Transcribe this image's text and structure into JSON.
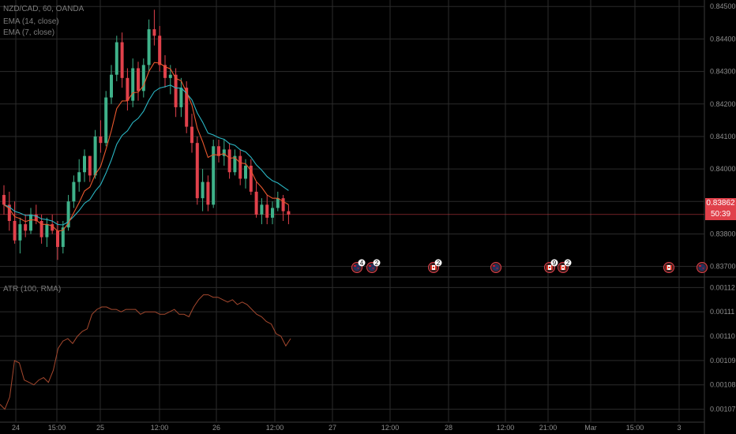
{
  "symbol": {
    "title": "NZD/CAD, 60, OANDA",
    "ema14": "EMA (14, close)",
    "ema7": "EMA (7, close)"
  },
  "atr_label": "ATR (100, RMA)",
  "price_tag": {
    "value": "0.83862",
    "countdown": "50:39"
  },
  "colors": {
    "up": "#3fb28a",
    "down": "#e0414b",
    "ema14": "#2ab7c5",
    "ema7": "#e9572d",
    "atr": "#a5482e",
    "grid": "#2b2b2b"
  },
  "events": [
    {
      "icon": "nz-flag-icon",
      "badge": "4"
    },
    {
      "icon": "nz-flag-icon",
      "badge": "2"
    },
    {
      "icon": "ca-flag-icon",
      "badge": "2"
    },
    {
      "icon": "nz-flag-icon",
      "badge": ""
    },
    {
      "icon": "ca-flag-icon",
      "badge": "9"
    },
    {
      "icon": "ca-flag-icon",
      "badge": "2"
    },
    {
      "icon": "ca-flag-icon",
      "badge": ""
    },
    {
      "icon": "nz-flag-icon",
      "badge": ""
    }
  ],
  "chart_data": [
    {
      "type": "candlestick",
      "title": "NZD/CAD, 60, OANDA",
      "y_ticks": [
        "0.84500",
        "0.84400",
        "0.84300",
        "0.84200",
        "0.84100",
        "0.84000",
        "0.83900",
        "0.83800",
        "0.83700"
      ],
      "ylim": [
        0.8367,
        0.8452
      ],
      "x_ticks": [
        "24",
        "15:00",
        "25",
        "12:00",
        "26",
        "12:00",
        "27",
        "12:00",
        "28",
        "12:00",
        "21:00",
        "Mar",
        "15:00",
        "3"
      ],
      "series": [
        {
          "name": "EMA (14, close)"
        },
        {
          "name": "EMA (7, close)"
        }
      ],
      "candles": [
        [
          0.8392,
          0.8395,
          0.8386,
          0.8389
        ],
        [
          0.8389,
          0.8393,
          0.8381,
          0.8384
        ],
        [
          0.8384,
          0.839,
          0.8377,
          0.8378
        ],
        [
          0.8378,
          0.8385,
          0.8374,
          0.8383
        ],
        [
          0.8383,
          0.8386,
          0.8379,
          0.8381
        ],
        [
          0.8381,
          0.8388,
          0.838,
          0.8386
        ],
        [
          0.8386,
          0.8389,
          0.8383,
          0.8384
        ],
        [
          0.8384,
          0.8386,
          0.8377,
          0.8379
        ],
        [
          0.8379,
          0.8385,
          0.8376,
          0.8383
        ],
        [
          0.8383,
          0.8386,
          0.838,
          0.8381
        ],
        [
          0.8381,
          0.8384,
          0.8372,
          0.8376
        ],
        [
          0.8376,
          0.8384,
          0.8374,
          0.8382
        ],
        [
          0.8382,
          0.8392,
          0.8381,
          0.839
        ],
        [
          0.839,
          0.8398,
          0.8388,
          0.8396
        ],
        [
          0.8396,
          0.8403,
          0.8393,
          0.8399
        ],
        [
          0.8399,
          0.8406,
          0.8396,
          0.8404
        ],
        [
          0.8404,
          0.8404,
          0.8396,
          0.8398
        ],
        [
          0.8398,
          0.8412,
          0.8397,
          0.841
        ],
        [
          0.841,
          0.8415,
          0.8405,
          0.8408
        ],
        [
          0.8408,
          0.8424,
          0.8407,
          0.8422
        ],
        [
          0.8422,
          0.8432,
          0.842,
          0.8429
        ],
        [
          0.8429,
          0.8441,
          0.8427,
          0.8439
        ],
        [
          0.8439,
          0.8442,
          0.8425,
          0.8428
        ],
        [
          0.8428,
          0.8431,
          0.8418,
          0.8421
        ],
        [
          0.8421,
          0.8434,
          0.8419,
          0.8431
        ],
        [
          0.8431,
          0.8433,
          0.8421,
          0.8424
        ],
        [
          0.8424,
          0.8434,
          0.8422,
          0.8432
        ],
        [
          0.8432,
          0.8446,
          0.843,
          0.8443
        ],
        [
          0.8443,
          0.8449,
          0.8438,
          0.8441
        ],
        [
          0.8441,
          0.8444,
          0.843,
          0.8432
        ],
        [
          0.8432,
          0.8435,
          0.8425,
          0.8428
        ],
        [
          0.8428,
          0.8432,
          0.8423,
          0.8429
        ],
        [
          0.8429,
          0.8431,
          0.8416,
          0.8419
        ],
        [
          0.8419,
          0.8428,
          0.8416,
          0.8425
        ],
        [
          0.8425,
          0.8427,
          0.8411,
          0.8413
        ],
        [
          0.8413,
          0.8417,
          0.8405,
          0.8408
        ],
        [
          0.8408,
          0.841,
          0.8389,
          0.8391
        ],
        [
          0.8391,
          0.84,
          0.8387,
          0.8396
        ],
        [
          0.8396,
          0.8398,
          0.8387,
          0.8389
        ],
        [
          0.8389,
          0.8409,
          0.8388,
          0.8407
        ],
        [
          0.8407,
          0.8409,
          0.8402,
          0.8404
        ],
        [
          0.8404,
          0.8409,
          0.8401,
          0.8406
        ],
        [
          0.8406,
          0.8408,
          0.8397,
          0.8399
        ],
        [
          0.8399,
          0.8406,
          0.8398,
          0.8404
        ],
        [
          0.8404,
          0.8406,
          0.8395,
          0.8397
        ],
        [
          0.8397,
          0.8403,
          0.8394,
          0.8401
        ],
        [
          0.8401,
          0.8403,
          0.8392,
          0.8393
        ],
        [
          0.8393,
          0.8396,
          0.8385,
          0.8386
        ],
        [
          0.8386,
          0.8391,
          0.8383,
          0.8389
        ],
        [
          0.8389,
          0.8392,
          0.8383,
          0.8385
        ],
        [
          0.8385,
          0.839,
          0.8383,
          0.8388
        ],
        [
          0.8388,
          0.8393,
          0.8387,
          0.8391
        ],
        [
          0.8391,
          0.8392,
          0.8384,
          0.8387
        ],
        [
          0.8387,
          0.8389,
          0.8383,
          0.8386
        ]
      ]
    },
    {
      "type": "line",
      "title": "ATR (100, RMA)",
      "y_ticks": [
        "0.00112",
        "0.00111",
        "0.00110",
        "0.00109",
        "0.00108",
        "0.00107"
      ],
      "ylim": [
        0.001065,
        0.001124
      ],
      "series": [
        {
          "name": "ATR (100, RMA)",
          "values": [
            0.001072,
            0.00107,
            0.001075,
            0.00109,
            0.001089,
            0.001082,
            0.001081,
            0.00108,
            0.001082,
            0.001083,
            0.001081,
            0.001086,
            0.001095,
            0.001098,
            0.001099,
            0.001097,
            0.0011,
            0.001102,
            0.001103,
            0.001109,
            0.001111,
            0.001112,
            0.001112,
            0.001111,
            0.001111,
            0.00111,
            0.001111,
            0.001111,
            0.001111,
            0.001109,
            0.00111,
            0.00111,
            0.00111,
            0.001109,
            0.001109,
            0.00111,
            0.001111,
            0.001109,
            0.001109,
            0.001108,
            0.001112,
            0.001115,
            0.001117,
            0.001117,
            0.001116,
            0.001116,
            0.001115,
            0.001114,
            0.001115,
            0.001113,
            0.001114,
            0.001113,
            0.001111,
            0.001109,
            0.001108,
            0.001106,
            0.001105,
            0.001101,
            0.0011,
            0.001096,
            0.001099
          ]
        }
      ]
    }
  ]
}
